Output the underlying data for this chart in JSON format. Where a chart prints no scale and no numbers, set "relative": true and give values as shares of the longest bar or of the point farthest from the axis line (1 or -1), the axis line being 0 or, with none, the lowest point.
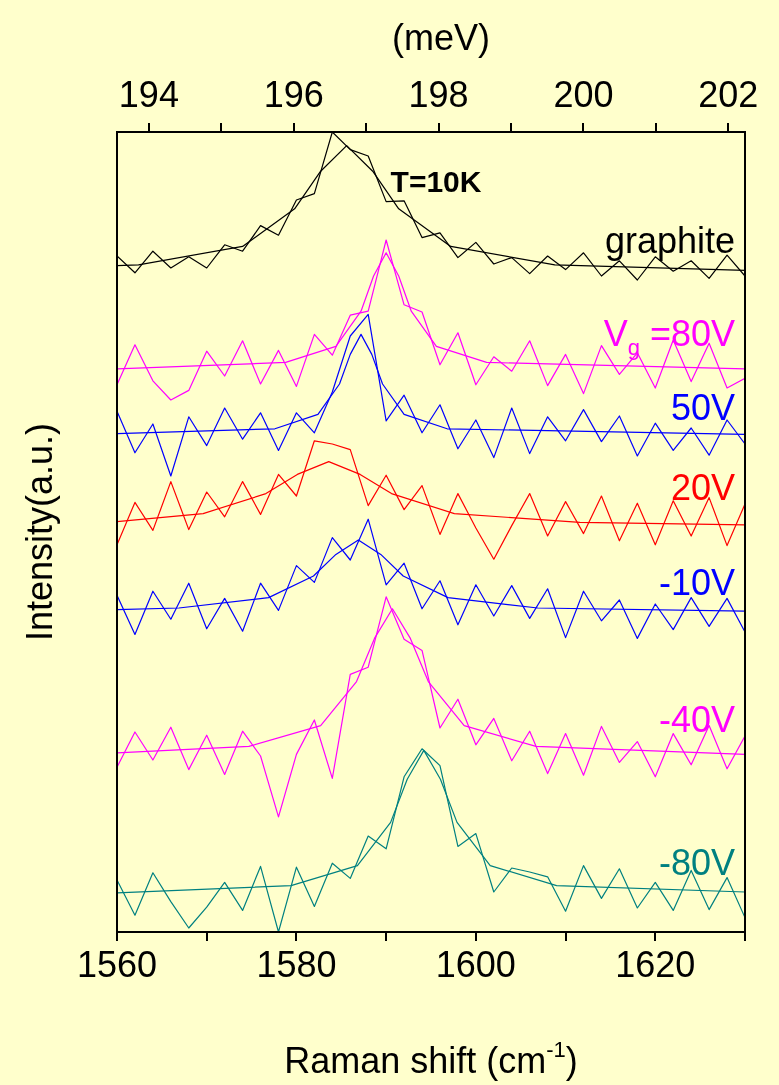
{
  "chart_data": {
    "type": "line",
    "title": "T=10K",
    "xlabel": "Raman shift (cm$^{-1}$)",
    "ylabel": "Intensity(a.u.)",
    "x2label": "(meV)",
    "relative": true,
    "marker": "none",
    "xlim": [
      1560,
      1630
    ],
    "xticks": [
      1560,
      {
        "value": 1570,
        "label": null
      },
      1580,
      {
        "value": 1590,
        "label": null
      },
      1600,
      {
        "value": 1610,
        "label": null
      },
      1620,
      {
        "value": 1630,
        "label": null
      }
    ],
    "x2lim": [
      193.56,
      202.23
    ],
    "x2ticks": [
      194,
      {
        "value": 195,
        "label": null
      },
      196,
      {
        "value": 197,
        "label": null
      },
      198,
      {
        "value": 199,
        "label": null
      },
      200,
      {
        "value": 201,
        "label": null
      },
      202
    ],
    "x": [
      1560,
      1562,
      1564,
      1566,
      1568,
      1570,
      1572,
      1574,
      1576,
      1578,
      1580,
      1582,
      1584,
      1586,
      1588,
      1590,
      1592,
      1594,
      1596,
      1598,
      1600,
      1602,
      1604,
      1606,
      1608,
      1610,
      1612,
      1614,
      1616,
      1618,
      1620,
      1622,
      1624,
      1626,
      1628,
      1630
    ],
    "series": [
      {
        "name": "graphite",
        "color": "#000000",
        "values": [
          0.845,
          0.824,
          0.851,
          0.83,
          0.844,
          0.83,
          0.859,
          0.851,
          0.883,
          0.871,
          0.915,
          0.923,
          1.0,
          0.978,
          0.97,
          0.913,
          0.914,
          0.868,
          0.874,
          0.843,
          0.862,
          0.835,
          0.843,
          0.823,
          0.845,
          0.828,
          0.849,
          0.82,
          0.839,
          0.815,
          0.844,
          0.826,
          0.839,
          0.817,
          0.846,
          0.82
        ]
      },
      {
        "color": "#000000",
        "x": [
          1560,
          1562.4,
          1574,
          1579.8,
          1582.7,
          1585.6,
          1588.5,
          1591.4,
          1597.2,
          1608.8,
          1630
        ],
        "values": [
          0.833,
          0.834,
          0.857,
          0.904,
          0.951,
          0.983,
          0.951,
          0.904,
          0.857,
          0.834,
          0.827
        ]
      },
      {
        "name": "V$_{g}$ =80V",
        "color": "#ff00ff",
        "values": [
          0.684,
          0.734,
          0.689,
          0.665,
          0.677,
          0.726,
          0.695,
          0.739,
          0.685,
          0.727,
          0.682,
          0.747,
          0.721,
          0.771,
          0.776,
          0.865,
          0.784,
          0.775,
          0.709,
          0.749,
          0.684,
          0.719,
          0.701,
          0.739,
          0.683,
          0.722,
          0.673,
          0.733,
          0.697,
          0.724,
          0.68,
          0.74,
          0.688,
          0.736,
          0.68,
          0.692
        ]
      },
      {
        "color": "#ff00ff",
        "x": [
          1560,
          1578.8,
          1584.4,
          1587.2,
          1588.6,
          1590,
          1591.4,
          1592.8,
          1595.6,
          1601.2,
          1630
        ],
        "values": [
          0.704,
          0.712,
          0.732,
          0.776,
          0.82,
          0.849,
          0.82,
          0.776,
          0.732,
          0.712,
          0.704
        ]
      },
      {
        "name": "50V",
        "color": "#0000ff",
        "values": [
          0.651,
          0.599,
          0.635,
          0.57,
          0.644,
          0.608,
          0.655,
          0.616,
          0.649,
          0.602,
          0.649,
          0.624,
          0.675,
          0.745,
          0.772,
          0.639,
          0.671,
          0.624,
          0.659,
          0.604,
          0.64,
          0.593,
          0.655,
          0.598,
          0.644,
          0.614,
          0.653,
          0.613,
          0.645,
          0.595,
          0.636,
          0.602,
          0.63,
          0.596,
          0.64,
          0.61
        ]
      },
      {
        "color": "#0000ff",
        "x": [
          1560,
          1577.6,
          1582.4,
          1584.8,
          1586,
          1587.2,
          1588.4,
          1589.6,
          1592,
          1596.8,
          1630
        ],
        "values": [
          0.623,
          0.629,
          0.647,
          0.685,
          0.722,
          0.747,
          0.722,
          0.685,
          0.647,
          0.629,
          0.622
        ]
      },
      {
        "name": "20V",
        "color": "#ff0000",
        "values": [
          0.484,
          0.537,
          0.502,
          0.563,
          0.503,
          0.55,
          0.519,
          0.563,
          0.522,
          0.572,
          0.545,
          0.614,
          0.61,
          0.603,
          0.533,
          0.571,
          0.528,
          0.558,
          0.497,
          0.548,
          0.505,
          0.466,
          0.508,
          0.548,
          0.495,
          0.538,
          0.498,
          0.545,
          0.489,
          0.536,
          0.484,
          0.539,
          0.495,
          0.543,
          0.483,
          0.535
        ]
      },
      {
        "color": "#ff0000",
        "x": [
          1560,
          1569.6,
          1576.6,
          1580.1,
          1583.6,
          1587.1,
          1590.6,
          1597.6,
          1611.6,
          1630
        ],
        "values": [
          0.513,
          0.523,
          0.548,
          0.572,
          0.588,
          0.572,
          0.548,
          0.523,
          0.512,
          0.509
        ]
      },
      {
        "name": "-10V",
        "color": "#0000ff",
        "values": [
          0.421,
          0.372,
          0.426,
          0.391,
          0.436,
          0.379,
          0.417,
          0.376,
          0.436,
          0.402,
          0.458,
          0.437,
          0.493,
          0.465,
          0.516,
          0.434,
          0.461,
          0.404,
          0.439,
          0.384,
          0.434,
          0.395,
          0.433,
          0.392,
          0.429,
          0.368,
          0.426,
          0.389,
          0.415,
          0.367,
          0.41,
          0.378,
          0.418,
          0.382,
          0.417,
          0.375
        ]
      },
      {
        "color": "#0000ff",
        "x": [
          1560,
          1566.9,
          1576.9,
          1581.9,
          1584.4,
          1586.9,
          1589.4,
          1591.9,
          1596.9,
          1606.9,
          1630
        ],
        "values": [
          0.403,
          0.405,
          0.418,
          0.445,
          0.472,
          0.49,
          0.472,
          0.445,
          0.418,
          0.405,
          0.401
        ]
      },
      {
        "name": "-40V",
        "color": "#ff00ff",
        "values": [
          0.206,
          0.25,
          0.215,
          0.256,
          0.203,
          0.246,
          0.197,
          0.251,
          0.22,
          0.144,
          0.222,
          0.265,
          0.192,
          0.322,
          0.331,
          0.419,
          0.366,
          0.352,
          0.255,
          0.291,
          0.234,
          0.267,
          0.214,
          0.251,
          0.198,
          0.248,
          0.196,
          0.257,
          0.212,
          0.238,
          0.194,
          0.248,
          0.209,
          0.258,
          0.204,
          0.245
        ]
      },
      {
        "color": "#ff00ff",
        "x": [
          1560,
          1574.7,
          1582.7,
          1586.7,
          1588.7,
          1590.7,
          1592.7,
          1594.7,
          1598.7,
          1606.7,
          1630
        ],
        "values": [
          0.224,
          0.232,
          0.258,
          0.313,
          0.367,
          0.404,
          0.367,
          0.313,
          0.258,
          0.232,
          0.222
        ]
      },
      {
        "name": "-80V",
        "color": "#008080",
        "values": [
          0.065,
          0.021,
          0.074,
          0.038,
          0.005,
          0.031,
          0.062,
          0.027,
          0.082,
          0.0,
          0.081,
          0.032,
          0.086,
          0.067,
          0.12,
          0.104,
          0.194,
          0.229,
          0.208,
          0.107,
          0.123,
          0.05,
          0.08,
          0.075,
          0.069,
          0.026,
          0.083,
          0.042,
          0.079,
          0.03,
          0.062,
          0.027,
          0.077,
          0.028,
          0.068,
          0.018
        ]
      },
      {
        "color": "#008080",
        "x": [
          1560,
          1579.4,
          1586.8,
          1590.5,
          1592.35,
          1594.2,
          1596.05,
          1597.9,
          1601.6,
          1609,
          1630
        ],
        "values": [
          0.049,
          0.058,
          0.083,
          0.137,
          0.191,
          0.227,
          0.191,
          0.137,
          0.083,
          0.058,
          0.05
        ]
      }
    ]
  }
}
